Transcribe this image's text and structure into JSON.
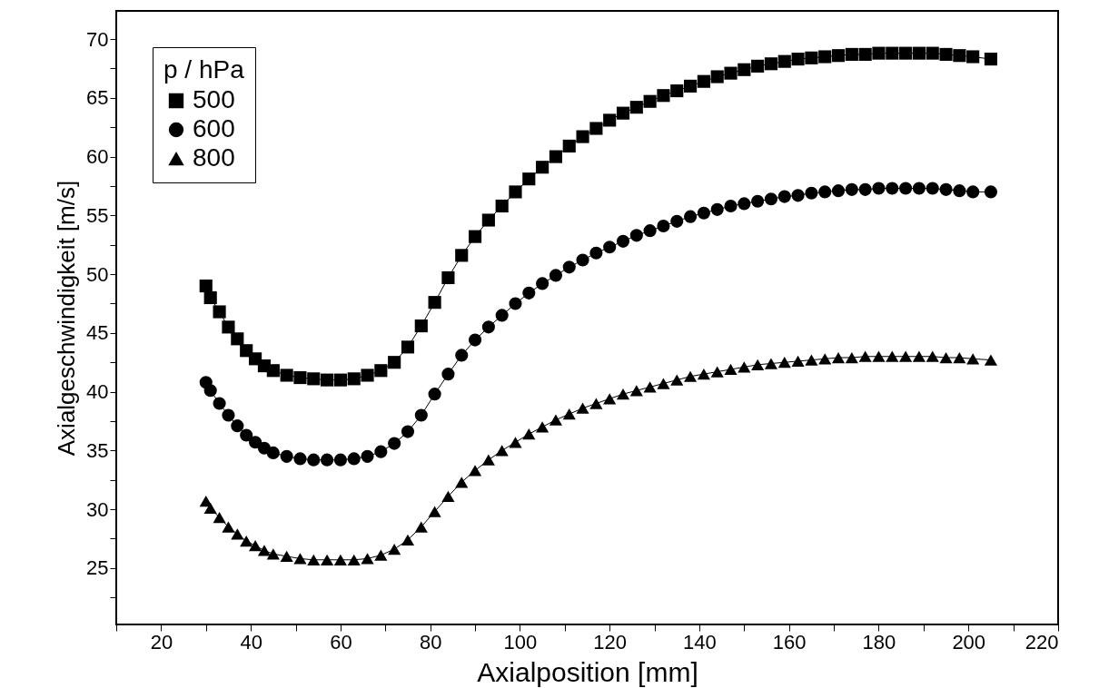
{
  "chart_data": {
    "type": "line",
    "xlabel": "Axialposition [mm]",
    "ylabel": "Axialgeschwindigkeit [m/s]",
    "legend_title": "p / hPa",
    "legend": "top left",
    "line_style": "solid",
    "grid": false,
    "x": [
      30,
      31,
      33,
      35,
      37,
      39,
      41,
      43,
      45,
      48,
      51,
      54,
      57,
      60,
      63,
      66,
      69,
      72,
      75,
      78,
      81,
      84,
      87,
      90,
      93,
      96,
      99,
      102,
      105,
      108,
      111,
      114,
      117,
      120,
      123,
      126,
      129,
      132,
      135,
      138,
      141,
      144,
      147,
      150,
      153,
      156,
      159,
      162,
      165,
      168,
      171,
      174,
      177,
      180,
      183,
      186,
      189,
      192,
      195,
      198,
      201,
      205
    ],
    "xlim": [
      10,
      220
    ],
    "xticks": [
      {
        "value": 10,
        "label": null
      },
      20,
      {
        "value": 30,
        "label": null
      },
      40,
      {
        "value": 50,
        "label": null
      },
      60,
      {
        "value": 70,
        "label": null
      },
      80,
      {
        "value": 90,
        "label": null
      },
      100,
      {
        "value": 110,
        "label": null
      },
      120,
      {
        "value": 130,
        "label": null
      },
      140,
      {
        "value": 150,
        "label": null
      },
      160,
      {
        "value": 170,
        "label": null
      },
      180,
      {
        "value": 190,
        "label": null
      },
      200,
      {
        "value": 210,
        "label": null
      },
      220
    ],
    "ylim": [
      20.2,
      72.4
    ],
    "yticks": [
      {
        "value": 22.5,
        "label": null
      },
      25,
      {
        "value": 27.5,
        "label": null
      },
      30,
      {
        "value": 32.5,
        "label": null
      },
      35,
      {
        "value": 37.5,
        "label": null
      },
      40,
      {
        "value": 42.5,
        "label": null
      },
      45,
      {
        "value": 47.5,
        "label": null
      },
      50,
      {
        "value": 52.5,
        "label": null
      },
      55,
      {
        "value": 57.5,
        "label": null
      },
      60,
      {
        "value": 62.5,
        "label": null
      },
      65,
      {
        "value": 67.5,
        "label": null
      },
      70
    ],
    "series": [
      {
        "name": "500",
        "color": "#000000",
        "marker": "square",
        "values": [
          49,
          48,
          46.8,
          45.5,
          44.5,
          43.5,
          42.8,
          42.2,
          41.8,
          41.4,
          41.2,
          41.1,
          41.0,
          41.0,
          41.1,
          41.4,
          41.8,
          42.5,
          43.8,
          45.6,
          47.6,
          49.7,
          51.6,
          53.2,
          54.6,
          55.8,
          57,
          58.1,
          59.1,
          60,
          60.9,
          61.7,
          62.4,
          63.1,
          63.7,
          64.2,
          64.7,
          65.2,
          65.6,
          66.0,
          66.4,
          66.8,
          67.1,
          67.4,
          67.7,
          67.9,
          68.1,
          68.3,
          68.4,
          68.5,
          68.6,
          68.7,
          68.7,
          68.8,
          68.8,
          68.8,
          68.8,
          68.8,
          68.7,
          68.6,
          68.5,
          68.3
        ]
      },
      {
        "name": "600",
        "color": "#000000",
        "marker": "circle",
        "values": [
          40.8,
          40.1,
          39.0,
          38.0,
          37.1,
          36.3,
          35.7,
          35.2,
          34.8,
          34.5,
          34.3,
          34.2,
          34.2,
          34.2,
          34.3,
          34.5,
          34.9,
          35.6,
          36.6,
          38.0,
          39.8,
          41.5,
          43.1,
          44.4,
          45.5,
          46.5,
          47.5,
          48.4,
          49.2,
          49.9,
          50.6,
          51.2,
          51.8,
          52.3,
          52.8,
          53.3,
          53.7,
          54.1,
          54.5,
          54.9,
          55.2,
          55.5,
          55.8,
          56.0,
          56.2,
          56.4,
          56.6,
          56.7,
          56.9,
          57.0,
          57.1,
          57.2,
          57.2,
          57.3,
          57.3,
          57.3,
          57.3,
          57.3,
          57.2,
          57.1,
          57.0,
          57.0
        ]
      },
      {
        "name": "800",
        "color": "#000000",
        "marker": "triangle",
        "values": [
          30.7,
          30.1,
          29.3,
          28.5,
          27.9,
          27.3,
          26.9,
          26.5,
          26.2,
          26.0,
          25.8,
          25.7,
          25.7,
          25.7,
          25.7,
          25.8,
          26.1,
          26.6,
          27.4,
          28.5,
          29.8,
          31.1,
          32.3,
          33.3,
          34.2,
          35.0,
          35.7,
          36.4,
          37.0,
          37.6,
          38.1,
          38.6,
          39.0,
          39.4,
          39.8,
          40.1,
          40.4,
          40.7,
          41.0,
          41.3,
          41.5,
          41.7,
          41.9,
          42.1,
          42.3,
          42.4,
          42.5,
          42.6,
          42.7,
          42.8,
          42.9,
          42.9,
          43.0,
          43.0,
          43.0,
          43.0,
          43.0,
          43.0,
          42.9,
          42.9,
          42.8,
          42.7
        ]
      }
    ]
  }
}
